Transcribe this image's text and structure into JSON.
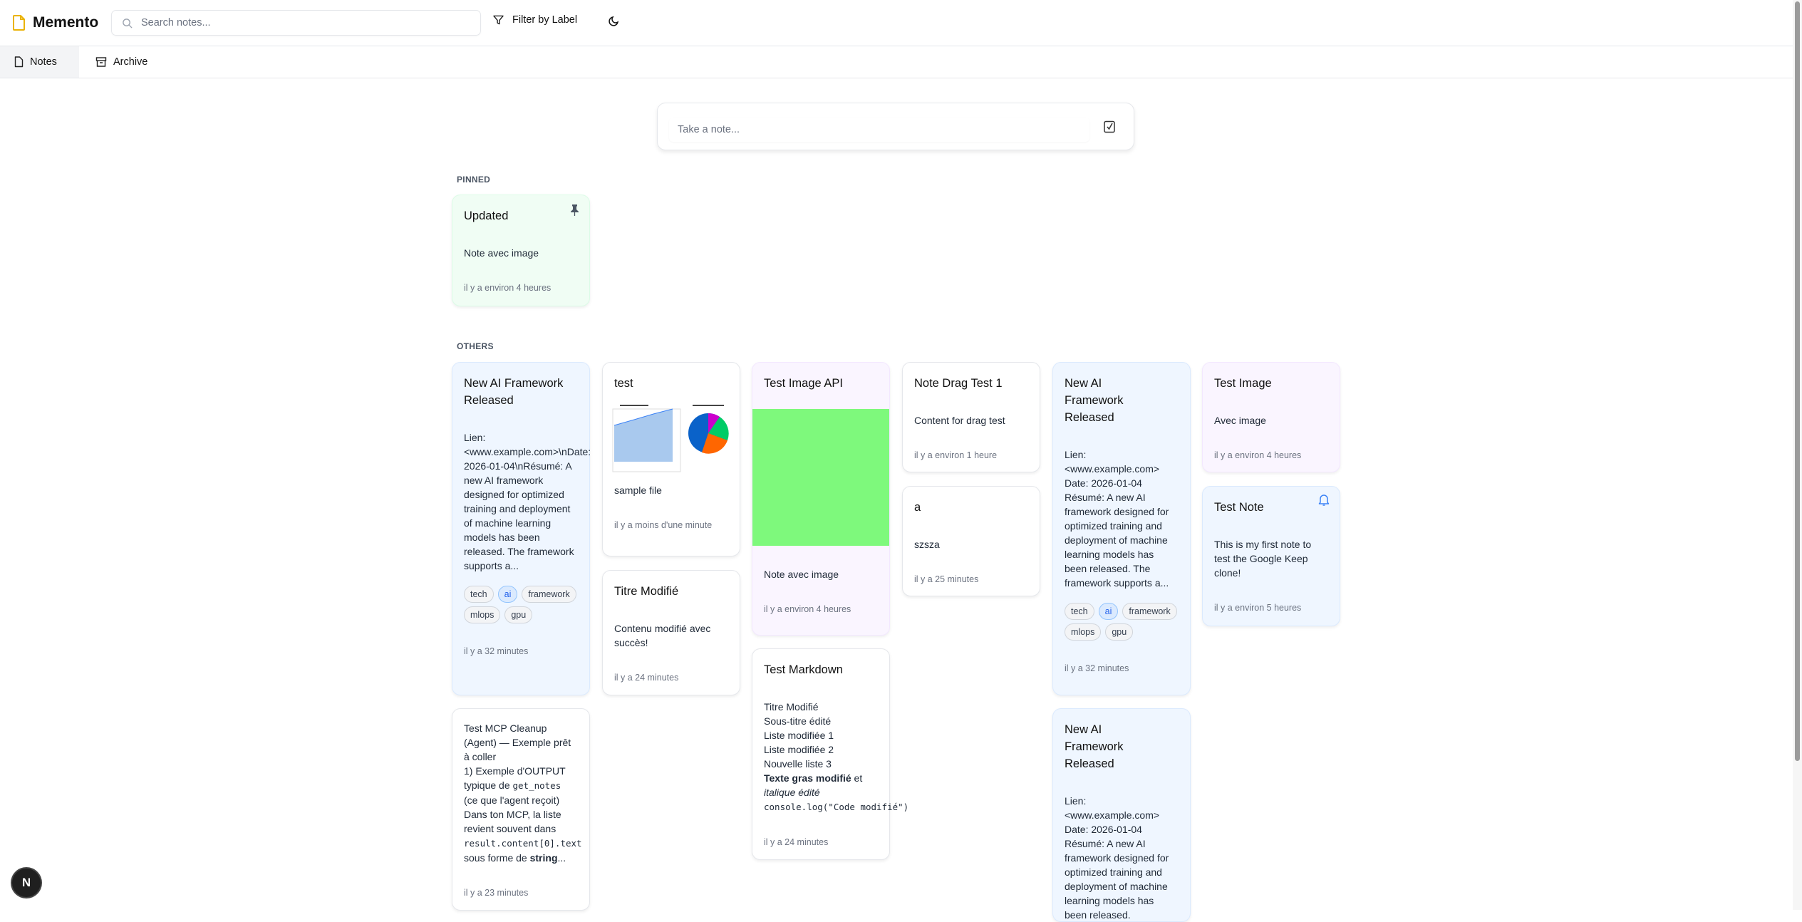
{
  "app": {
    "title": "Memento",
    "search_placeholder": "Search notes...",
    "filter_label": "Filter by Label",
    "accent": "#eab308"
  },
  "tabs": [
    {
      "label": "Notes",
      "active": true
    },
    {
      "label": "Archive",
      "active": false
    }
  ],
  "composer": {
    "placeholder": "Take a note..."
  },
  "sections": {
    "pinned": "PINNED",
    "others": "OTHERS"
  },
  "pinned": [
    {
      "title": "Updated",
      "content": "Note avec image",
      "time": "il y a environ 4 heures",
      "color": "#f0fdf4",
      "icon": "pin-icon"
    }
  ],
  "notes": {
    "ai1": {
      "title": "New AI Framework Released",
      "content": "Lien: <www.example.com>\\nDate: 2026-01-04\\nRésumé: A new AI framework designed for optimized training and deployment of machine learning models has been released. The framework supports a...",
      "tags": [
        "tech",
        "ai",
        "framework",
        "mlops",
        "gpu"
      ],
      "time": "il y a 32 minutes"
    },
    "mcp": {
      "l1": "Test MCP Cleanup (Agent) — Exemple prêt à coller",
      "l2": "1) Exemple d'OUTPUT typique de ",
      "l2code": "get_notes",
      "l3": "(ce que l'agent reçoit) Dans ton MCP, la liste revient souvent dans",
      "l4code": "result.content[0].text",
      "l5": "sous forme de ",
      "l5bold": "string",
      "l5end": "...",
      "time": "il y a 23 minutes"
    },
    "test": {
      "title": "test",
      "content": "sample file",
      "time": "il y a moins d'une minute"
    },
    "titre": {
      "title": "Titre Modifié",
      "content": "Contenu modifié avec succès!",
      "time": "il y a 24 minutes"
    },
    "image_api": {
      "title": "Test Image API",
      "content": "Note avec image",
      "time": "il y a environ 4 heures",
      "image_color": "#7ef97c"
    },
    "markdown": {
      "title": "Test Markdown",
      "lines": [
        "Titre Modifié",
        "Sous-titre édité",
        "Liste modifiée 1",
        "Liste modifiée 2",
        "Nouvelle liste 3"
      ],
      "bold": "Texte gras modifié",
      "after_bold": " et",
      "italic": "italique édité",
      "code": "console.log(\"Code modifié\")",
      "time": "il y a 24 minutes"
    },
    "drag": {
      "title": "Note Drag Test 1",
      "content": "Content for drag test",
      "time": "il y a environ 1 heure"
    },
    "a": {
      "title": "a",
      "content": "szsza",
      "time": "il y a 25 minutes"
    },
    "ai2": {
      "title": "New AI Framework Released",
      "content_lines": [
        "Lien:",
        "<www.example.com>",
        "Date: 2026-01-04",
        "Résumé: A new AI framework designed for optimized training and deployment of machine learning models has been released. The framework supports a..."
      ],
      "tags": [
        "tech",
        "ai",
        "framework",
        "mlops",
        "gpu"
      ],
      "time": "il y a 32 minutes"
    },
    "ai3": {
      "title": "New AI Framework Released",
      "content_lines": [
        "Lien:",
        "<www.example.com>",
        "Date: 2026-01-04",
        "Résumé: A new AI framework designed for optimized training and deployment of machine learning models has been released."
      ]
    },
    "test_image": {
      "title": "Test Image",
      "content": "Avec image",
      "time": "il y a environ 4 heures"
    },
    "test_note": {
      "title": "Test Note",
      "content": "This is my first note to test the Google Keep clone!",
      "time": "il y a environ 5 heures",
      "icon": "bell-icon"
    }
  },
  "card_colors": {
    "blue": "#eff6ff",
    "green": "#f0fdf4",
    "purple": "#faf5ff",
    "white": "#ffffff"
  },
  "badge": "N"
}
